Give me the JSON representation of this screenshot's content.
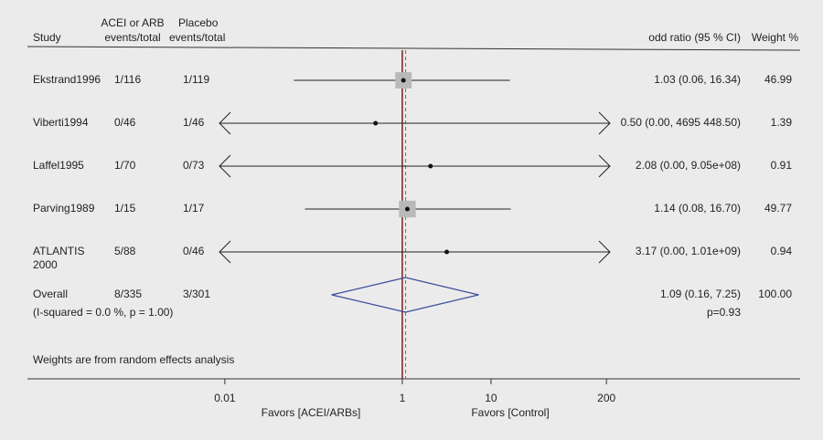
{
  "chart_data": {
    "type": "forest",
    "headers": {
      "study": "Study",
      "treatment": [
        "ACEI or ARB",
        "events/total"
      ],
      "control": [
        "Placebo",
        "events/total"
      ],
      "effect": "odd ratio (95 % CI)",
      "weight": "Weight %"
    },
    "studies": [
      {
        "name": "Ekstrand1996",
        "treatment": "1/116",
        "control": "1/119",
        "or": 1.03,
        "lower": 0.06,
        "upper": 16.34,
        "ci_label": "1.03 (0.06, 16.34)",
        "weight": 46.99
      },
      {
        "name": "Viberti1994",
        "treatment": "0/46",
        "control": "1/46",
        "or": 0.5,
        "lower": 0.0,
        "upper": 4695448.5,
        "ci_label": "0.50 (0.00, 4695 448.50)",
        "weight": 1.39
      },
      {
        "name": "Laffel1995",
        "treatment": "1/70",
        "control": "0/73",
        "or": 2.08,
        "lower": 0.0,
        "upper": 905000000,
        "ci_label": "2.08 (0.00, 9.05e+08)",
        "weight": 0.91
      },
      {
        "name": "Parving1989",
        "treatment": "1/15",
        "control": "1/17",
        "or": 1.14,
        "lower": 0.08,
        "upper": 16.7,
        "ci_label": "1.14 (0.08, 16.70)",
        "weight": 49.77
      },
      {
        "name": "ATLANTIS 2000",
        "treatment": "5/88",
        "control": "0/46",
        "or": 3.17,
        "lower": 0.0,
        "upper": 1010000000,
        "ci_label": "3.17 (0.00, 1.01e+09)",
        "weight": 0.94
      }
    ],
    "overall": {
      "name": "Overall",
      "treatment": "8/335",
      "control": "3/301",
      "or": 1.09,
      "lower": 0.16,
      "upper": 7.25,
      "ci_label": "1.09 (0.16, 7.25)",
      "weight": 100,
      "weight_label": "100.00",
      "heterogeneity": "(I-squared = 0.0 %, p = 1.00)",
      "p_label": "p=0.93"
    },
    "note": "Weights are from random effects analysis",
    "xlim": [
      0.0087,
      219
    ],
    "xticks": [
      0.01,
      1,
      10,
      200
    ],
    "log_x": true,
    "null_value": 1,
    "favors_left": "Favors [ACEI/ARBs]",
    "favors_right": "Favors [Control]",
    "square_color": "#b9b9b9",
    "diamond_color": "#3a4a9a",
    "null_line_color": "#7a2020",
    "overall_line_color": "#d04060"
  }
}
